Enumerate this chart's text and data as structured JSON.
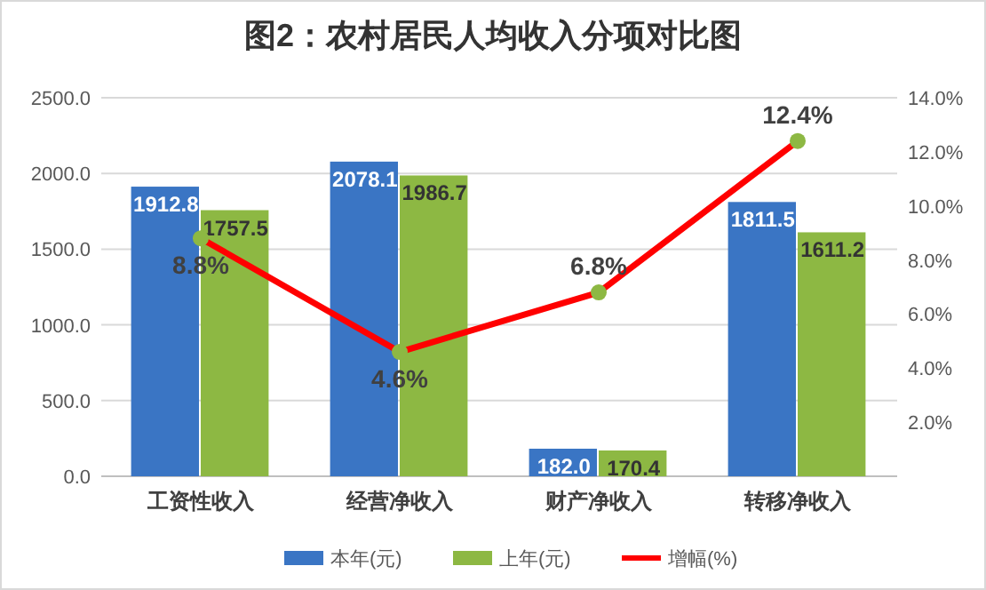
{
  "chart_data": {
    "type": "bar",
    "title": "图2：农村居民人均收入分项对比图",
    "categories": [
      "工资性收入",
      "经营净收入",
      "财产净收入",
      "转移净收入"
    ],
    "series": [
      {
        "name": "本年(元)",
        "color": "#3a75c4",
        "values": [
          1912.8,
          2078.1,
          182.0,
          1811.5
        ],
        "value_labels": [
          "1912.8",
          "2078.1",
          "182.0",
          "1811.5"
        ]
      },
      {
        "name": "上年(元)",
        "color": "#8db843",
        "values": [
          1757.5,
          1986.7,
          170.4,
          1611.2
        ],
        "value_labels": [
          "1757.5",
          "1986.7",
          "170.4",
          "1611.2"
        ]
      },
      {
        "name": "增幅(%)",
        "type": "line",
        "axis": "y2",
        "color": "#ff0000",
        "marker": "circle",
        "values": [
          8.8,
          4.6,
          6.8,
          12.4
        ],
        "value_labels": [
          "8.8%",
          "4.6%",
          "6.8%",
          "12.4%"
        ]
      }
    ],
    "ylim": [
      0,
      2500
    ],
    "yticks": [
      {
        "value": 0,
        "label": "0.0"
      },
      {
        "value": 500,
        "label": "500.0"
      },
      {
        "value": 1000,
        "label": "1000.0"
      },
      {
        "value": 1500,
        "label": "1500.0"
      },
      {
        "value": 2000,
        "label": "2000.0"
      },
      {
        "value": 2500,
        "label": "2500.0"
      }
    ],
    "y2lim": [
      0,
      14
    ],
    "y2ticks": [
      {
        "value": 2,
        "label": "2.0%"
      },
      {
        "value": 4,
        "label": "4.0%"
      },
      {
        "value": 6,
        "label": "6.0%"
      },
      {
        "value": 8,
        "label": "8.0%"
      },
      {
        "value": 10,
        "label": "10.0%"
      },
      {
        "value": 12,
        "label": "12.0%"
      },
      {
        "value": 14,
        "label": "14.0%"
      }
    ],
    "grid": "y",
    "legend": "bottom"
  }
}
